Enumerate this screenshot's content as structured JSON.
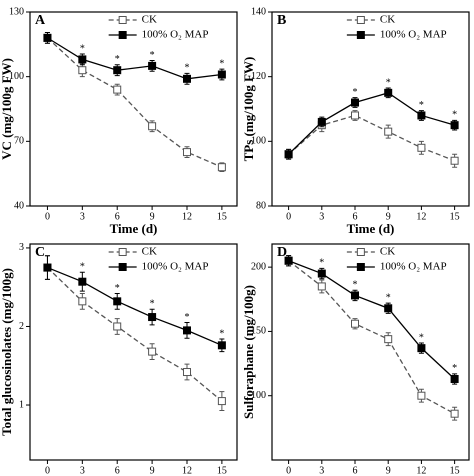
{
  "chart_data": [
    {
      "type": "line",
      "panel": "A",
      "ylabel": "VC (mg/100g FW)",
      "xlabel": "Time (d)",
      "x": [
        0,
        3,
        6,
        9,
        12,
        15
      ],
      "xlim": [
        -1.5,
        16.3
      ],
      "xticks": [
        0,
        3,
        6,
        9,
        12,
        15
      ],
      "ylim": [
        40,
        130
      ],
      "yticks": [
        40,
        70,
        100,
        130
      ],
      "legend": "upper center",
      "series": [
        {
          "name": "CK",
          "color": "#555555",
          "marker": "open",
          "dash": true,
          "values": [
            118,
            103,
            94,
            77,
            65,
            58
          ],
          "errors": [
            2.5,
            3,
            2.5,
            2.5,
            2.5,
            2
          ]
        },
        {
          "name": "100% O₂ MAP",
          "color": "#000000",
          "marker": "filled",
          "dash": false,
          "values": [
            118,
            108,
            103,
            105,
            99,
            101
          ],
          "errors": [
            2.5,
            2.5,
            2.5,
            2.5,
            2.5,
            2.5
          ],
          "significance": [
            null,
            "*",
            "*",
            "*",
            "*",
            "*"
          ]
        }
      ]
    },
    {
      "type": "line",
      "panel": "B",
      "ylabel": "TPs (mg/100g FW)",
      "xlabel": "Time (d)",
      "x": [
        0,
        3,
        6,
        9,
        12,
        15
      ],
      "xlim": [
        -1.5,
        16.3
      ],
      "xticks": [
        0,
        3,
        6,
        9,
        12,
        15
      ],
      "ylim": [
        80,
        140
      ],
      "yticks": [
        80,
        100,
        120,
        140
      ],
      "legend": "upper center",
      "series": [
        {
          "name": "CK",
          "color": "#555555",
          "marker": "open",
          "dash": true,
          "values": [
            96,
            105,
            108,
            103,
            98,
            94
          ],
          "errors": [
            1.5,
            2,
            1.5,
            2,
            2,
            2
          ]
        },
        {
          "name": "100% O₂ MAP",
          "color": "#000000",
          "marker": "filled",
          "dash": false,
          "values": [
            96,
            106,
            112,
            115,
            108,
            105
          ],
          "errors": [
            1.5,
            1.5,
            1.5,
            1.5,
            1.5,
            1.5
          ],
          "significance": [
            null,
            null,
            "*",
            "*",
            "*",
            "*"
          ]
        }
      ]
    },
    {
      "type": "line",
      "panel": "C",
      "ylabel": "Total glucosinolates (mg/100g)",
      "xlabel": "Time (d)",
      "x": [
        0,
        3,
        6,
        9,
        12,
        15
      ],
      "xlim": [
        -1.5,
        16.3
      ],
      "xticks": [
        0,
        3,
        6,
        9,
        12,
        15
      ],
      "ylim": [
        0.3,
        3.05
      ],
      "yticks": [
        1,
        2,
        3
      ],
      "legend": "upper center",
      "series": [
        {
          "name": "CK",
          "color": "#555555",
          "marker": "open",
          "dash": true,
          "values": [
            2.75,
            2.32,
            2.0,
            1.68,
            1.42,
            1.05
          ],
          "errors": [
            0.15,
            0.1,
            0.1,
            0.1,
            0.1,
            0.12
          ]
        },
        {
          "name": "100% O₂ MAP",
          "color": "#000000",
          "marker": "filled",
          "dash": false,
          "values": [
            2.75,
            2.57,
            2.32,
            2.12,
            1.95,
            1.76
          ],
          "errors": [
            0.15,
            0.12,
            0.1,
            0.1,
            0.1,
            0.08
          ],
          "significance": [
            null,
            "*",
            "*",
            "*",
            "*",
            "*"
          ]
        }
      ]
    },
    {
      "type": "line",
      "panel": "D",
      "ylabel": "Sulforaphane (mg/100g)",
      "xlabel": "Time (d)",
      "x": [
        0,
        3,
        6,
        9,
        12,
        15
      ],
      "xlim": [
        -1.5,
        16.3
      ],
      "xticks": [
        0,
        3,
        6,
        9,
        12,
        15
      ],
      "ylim": [
        50,
        218
      ],
      "yticks": [
        100,
        150,
        200
      ],
      "legend": "upper center",
      "series": [
        {
          "name": "CK",
          "color": "#555555",
          "marker": "open",
          "dash": true,
          "values": [
            205,
            185,
            156,
            144,
            100,
            86
          ],
          "errors": [
            4,
            5,
            4,
            5,
            5,
            5
          ]
        },
        {
          "name": "100% O₂ MAP",
          "color": "#000000",
          "marker": "filled",
          "dash": false,
          "values": [
            205,
            195,
            178,
            168,
            137,
            113
          ],
          "errors": [
            4,
            4,
            4,
            4,
            4,
            4
          ],
          "significance": [
            null,
            "*",
            "*",
            "*",
            "*",
            "*"
          ]
        }
      ]
    }
  ]
}
